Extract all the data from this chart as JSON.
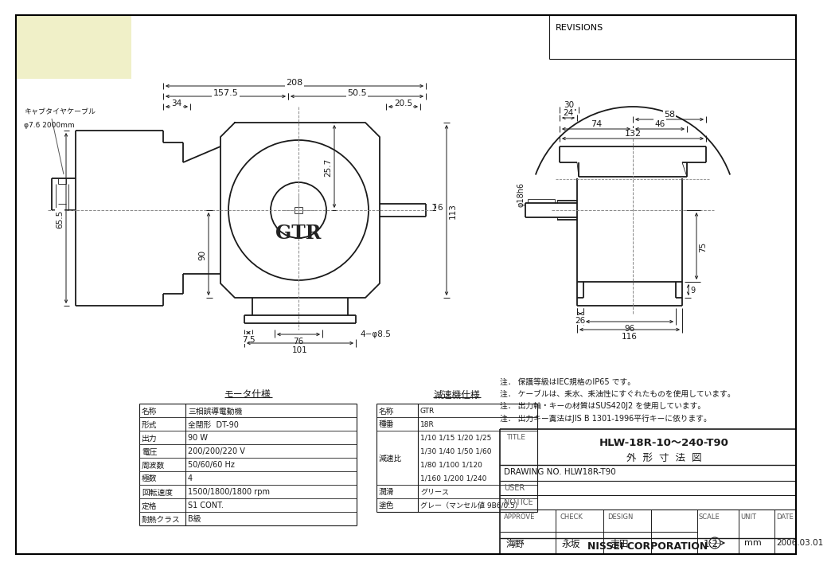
{
  "bg_color": "#ffffff",
  "line_color": "#1a1a1a",
  "light_yellow": "#f0f0c8",
  "motor_spec": {
    "title": "モータ仕様",
    "rows": [
      [
        "名称",
        "三相誤導電動機"
      ],
      [
        "形式",
        "全閉形  DT-90"
      ],
      [
        "出力",
        "90 W"
      ],
      [
        "電圧",
        "200/200/220 V"
      ],
      [
        "周波数",
        "50/60/60 Hz"
      ],
      [
        "極数",
        "4"
      ],
      [
        "回転速度",
        "1500/1800/1800 rpm"
      ],
      [
        "定格",
        "S1 CONT."
      ],
      [
        "耐熱クラス",
        "B級"
      ]
    ]
  },
  "reducer_spec": {
    "title": "減速機仕様",
    "rows": [
      [
        "名称",
        "GTR"
      ],
      [
        "種番",
        "18R"
      ],
      [
        "減速比",
        "1/10 1/15 1/20 1/25\n1/30 1/40 1/50 1/60\n1/80 1/100 1/120\n1/160 1/200 1/240"
      ],
      [
        "潤滑",
        "グリース"
      ],
      [
        "塗色",
        "グレー（マンセル値 9B6/0.5）"
      ]
    ]
  },
  "notes": [
    "注． 保護等級はIEC規格のIP65 です。",
    "注． ケーブルは、耒水、耒油性にすぐれたものを使用しています。",
    "注． 出力軸・キーの材質はSUS420J2 を使用しています。",
    "注． 出力キー寘法はJIS B 1301-1996平行キーに依ります。"
  ],
  "title_block": {
    "title": "HLW-18R-10～240-T90",
    "subtitle": "外  形  寸  法  図",
    "drawing_no": "DRAWING NO. HLW18R-T90",
    "user": "USER",
    "notice": "NOTICE",
    "approve": "APPROVE",
    "check": "CHECK",
    "design": "DESIGN",
    "scale_label": "SCALE",
    "unit": "UNIT",
    "unit_val": "mm",
    "date": "DATE",
    "date_val": "2006.03.01",
    "scale_val": "1:2",
    "company": "NISSEI CORPORATION",
    "revisions": "REVISIONS",
    "kaihatu": "海野",
    "eiga": "永坂",
    "yoshida": "吉田"
  }
}
